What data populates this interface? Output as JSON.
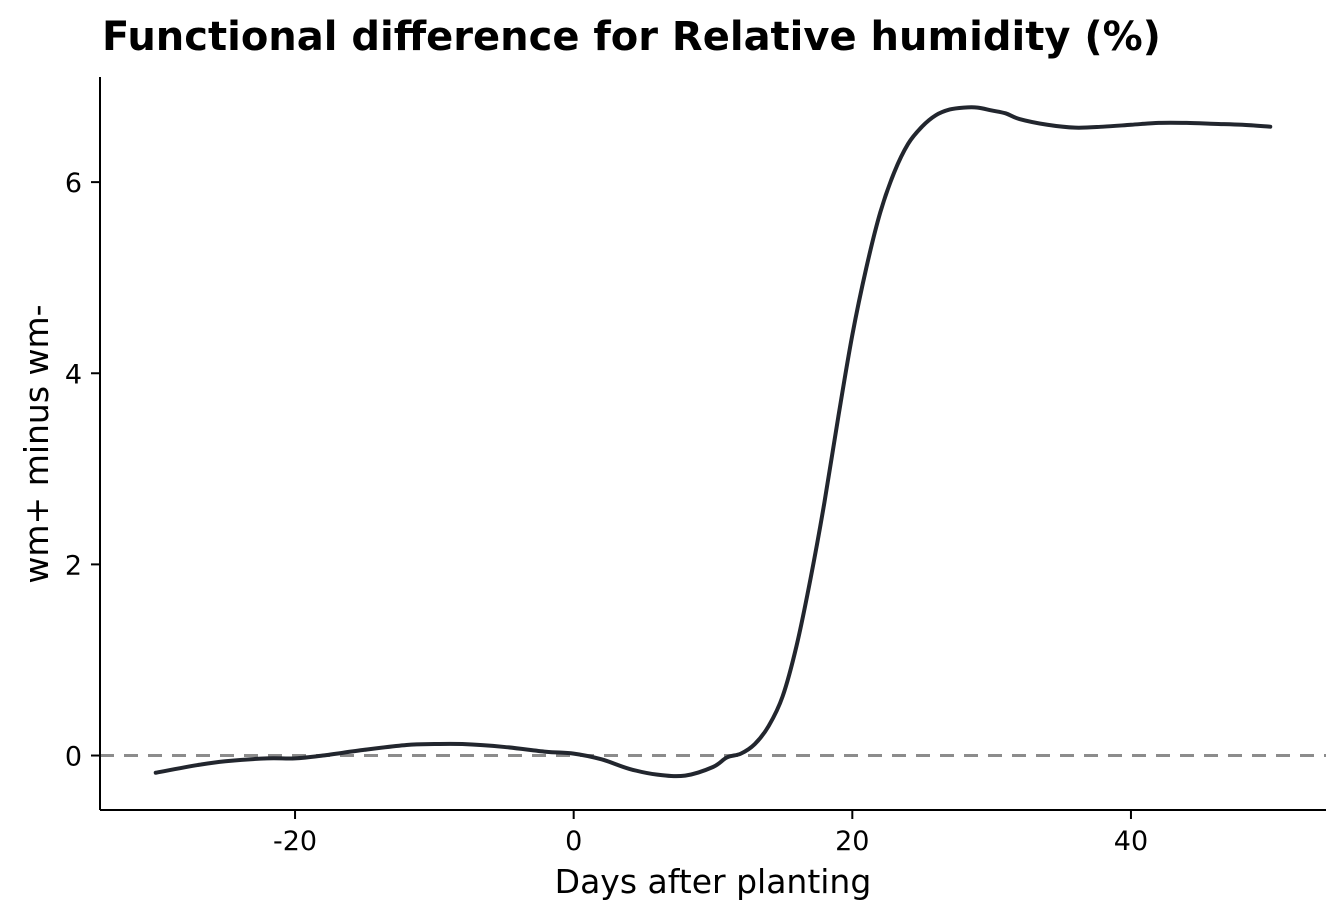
{
  "chart_data": {
    "type": "line",
    "title": "Functional difference for Relative humidity (%)",
    "xlabel": "Days after planting",
    "ylabel": "wm+ minus wm-",
    "xlim": [
      -34,
      54
    ],
    "ylim": [
      -0.57,
      7.1
    ],
    "x_ticks": [
      -20,
      0,
      20,
      40
    ],
    "x_tick_labels": [
      "-20",
      "0",
      "20",
      "40"
    ],
    "y_ticks": [
      0,
      2,
      4,
      6
    ],
    "y_tick_labels": [
      "0",
      "2",
      "4",
      "6"
    ],
    "grid": false,
    "legend": "none",
    "reference_line": {
      "y": 0,
      "style": "dashed",
      "color": "#8c8c8c"
    },
    "series": [
      {
        "color": "#22262e",
        "x": [
          -30,
          -27,
          -25,
          -22,
          -20,
          -18,
          -15,
          -12,
          -10,
          -8,
          -5,
          -2,
          0,
          2,
          4,
          6,
          8,
          10,
          11,
          12,
          13,
          14,
          15,
          16,
          17,
          18,
          19,
          20,
          21,
          22,
          23,
          24,
          25,
          26,
          27,
          28,
          29,
          30,
          31,
          32,
          34,
          36,
          38,
          40,
          42,
          44,
          46,
          48,
          50
        ],
        "y": [
          -0.18,
          -0.1,
          -0.06,
          -0.03,
          -0.03,
          0.0,
          0.06,
          0.11,
          0.12,
          0.12,
          0.09,
          0.04,
          0.02,
          -0.04,
          -0.14,
          -0.2,
          -0.21,
          -0.12,
          -0.02,
          0.02,
          0.12,
          0.31,
          0.62,
          1.15,
          1.85,
          2.65,
          3.55,
          4.4,
          5.1,
          5.68,
          6.1,
          6.4,
          6.58,
          6.7,
          6.76,
          6.78,
          6.78,
          6.75,
          6.72,
          6.66,
          6.6,
          6.57,
          6.58,
          6.6,
          6.62,
          6.62,
          6.61,
          6.6,
          6.58
        ]
      }
    ]
  }
}
